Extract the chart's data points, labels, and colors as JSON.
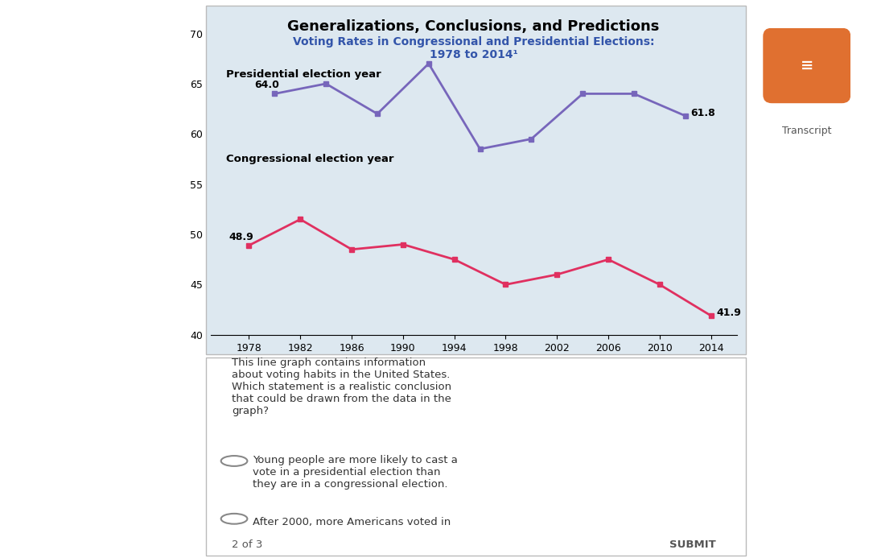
{
  "title": "Generalizations, Conclusions, and Predictions",
  "subtitle": "Voting Rates in Congressional and Presidential Elections:\n1978 to 2014¹",
  "title_color": "#000000",
  "subtitle_color": "#3355aa",
  "chart_bg": "#dde8f0",
  "outer_bg": "#ffffff",
  "years": [
    1978,
    1980,
    1982,
    1984,
    1986,
    1988,
    1990,
    1992,
    1994,
    1996,
    1998,
    2000,
    2002,
    2004,
    2006,
    2008,
    2010,
    2012,
    2014
  ],
  "presidential_years": [
    1980,
    1984,
    1988,
    1992,
    1996,
    2000,
    2004,
    2008,
    2012
  ],
  "congressional_years": [
    1978,
    1982,
    1986,
    1990,
    1994,
    1998,
    2002,
    2006,
    2010,
    2014
  ],
  "presidential_values": [
    64.0,
    65.0,
    62.0,
    67.0,
    58.5,
    59.5,
    64.0,
    64.0,
    61.8
  ],
  "congressional_values": [
    48.9,
    51.5,
    48.5,
    49.0,
    47.5,
    45.0,
    46.0,
    47.5,
    45.0,
    41.9
  ],
  "presidential_color": "#7766bb",
  "congressional_color": "#e03060",
  "ylim": [
    40,
    70
  ],
  "yticks": [
    40,
    45,
    50,
    55,
    60,
    65,
    70
  ],
  "xtick_labels": [
    "1978",
    "1982",
    "1986",
    "1990",
    "1994",
    "1998",
    "2002",
    "2006",
    "2010",
    "2014"
  ],
  "xtick_positions": [
    1978,
    1982,
    1986,
    1990,
    1994,
    1998,
    2002,
    2006,
    2010,
    2014
  ],
  "label_presidential": "Presidential election year",
  "label_congressional": "Congressional election year",
  "first_pres_value": "64.0",
  "last_pres_value": "61.8",
  "first_cong_value": "48.9",
  "last_cong_value": "41.9",
  "question_text": "This line graph contains information\nabout voting habits in the United States.\nWhich statement is a realistic conclusion\nthat could be drawn from the data in the\ngraph?",
  "choice1": "Young people are more likely to cast a\nvote in a presidential election than\nthey are in a congressional election.",
  "choice2": "After 2000, more Americans voted in",
  "footer_left": "2 of 3",
  "footer_right": "SUBMIT",
  "icon_color": "#e07030"
}
